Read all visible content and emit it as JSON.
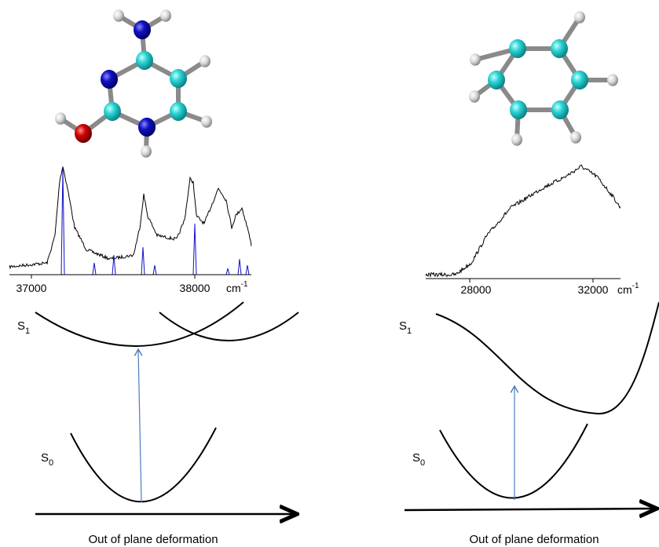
{
  "panels": [
    {
      "spectrum_axis": {
        "ticks": [
          37000,
          38000
        ],
        "unit": "cm",
        "unit_exponent": "-1"
      },
      "states": {
        "upper": {
          "label": "S",
          "subscript": "1"
        },
        "lower": {
          "label": "S",
          "subscript": "0"
        }
      },
      "x_axis_label": "Out of plane deformation"
    },
    {
      "spectrum_axis": {
        "ticks": [
          28000,
          32000
        ],
        "unit": "cm",
        "unit_exponent": "-1"
      },
      "states": {
        "upper": {
          "label": "S",
          "subscript": "1"
        },
        "lower": {
          "label": "S",
          "subscript": "0"
        }
      },
      "x_axis_label": "Out of plane deformation"
    }
  ]
}
